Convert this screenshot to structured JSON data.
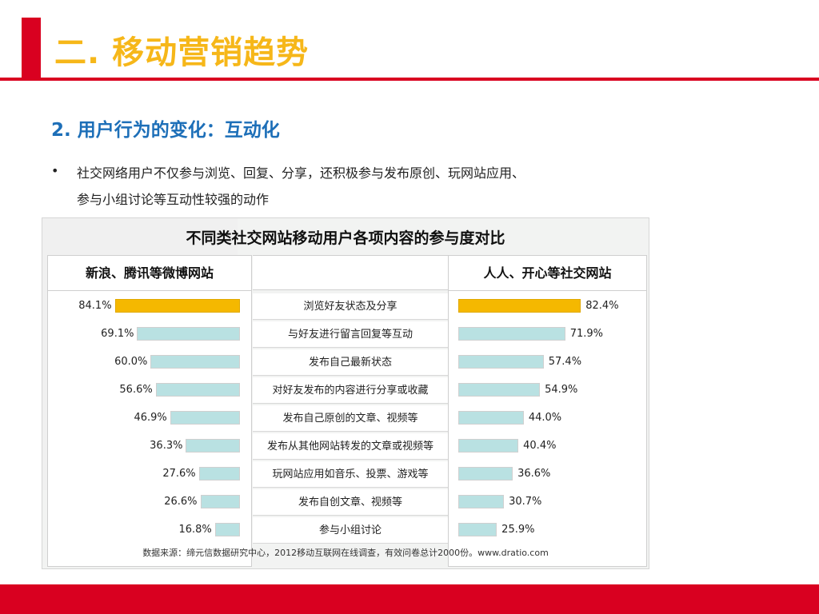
{
  "slide": {
    "title": "二. 移动营销趋势",
    "subtitle": "2. 用户行为的变化：互动化",
    "bullet": "•",
    "bullet_line1": "社交网络用户不仅参与浏览、回复、分享，还积极参与发布原创、玩网站应用、",
    "bullet_line2": "参与小组讨论等互动性较强的动作",
    "colors": {
      "accent_red": "#d90020",
      "title_yellow": "#f6b719",
      "subtitle_blue": "#1d6fb8"
    }
  },
  "chart_data": {
    "type": "bar",
    "title": "不同类社交网站移动用户各项内容的参与度对比",
    "source": "数据来源：缔元信数据研究中心，2012移动互联网在线调查，有效问卷总计2000份。www.dratio.com",
    "categories": [
      "浏览好友状态及分享",
      "与好友进行留言回复等互动",
      "发布自己最新状态",
      "对好友发布的内容进行分享或收藏",
      "发布自己原创的文章、视频等",
      "发布从其他网站转发的文章或视频等",
      "玩网站应用如音乐、投票、游戏等",
      "发布自创文章、视频等",
      "参与小组讨论"
    ],
    "series": [
      {
        "name": "新浪、腾讯等微博网站",
        "values": [
          84.1,
          69.1,
          60.0,
          56.6,
          46.9,
          36.3,
          27.6,
          26.6,
          16.8
        ],
        "labels": [
          "84.1%",
          "69.1%",
          "60.0%",
          "56.6%",
          "46.9%",
          "36.3%",
          "27.6%",
          "26.6%",
          "16.8%"
        ]
      },
      {
        "name": "人人、开心等社交网站",
        "values": [
          82.4,
          71.9,
          57.4,
          54.9,
          44.0,
          40.4,
          36.6,
          30.7,
          25.9
        ],
        "labels": [
          "82.4%",
          "71.9%",
          "57.4%",
          "54.9%",
          "44.0%",
          "40.4%",
          "36.6%",
          "30.7%",
          "25.9%"
        ]
      }
    ],
    "highlight_index": 0,
    "colors": {
      "bar": "#b9e1e2",
      "highlight": "#f5b800"
    },
    "ylim": [
      0,
      100
    ]
  }
}
